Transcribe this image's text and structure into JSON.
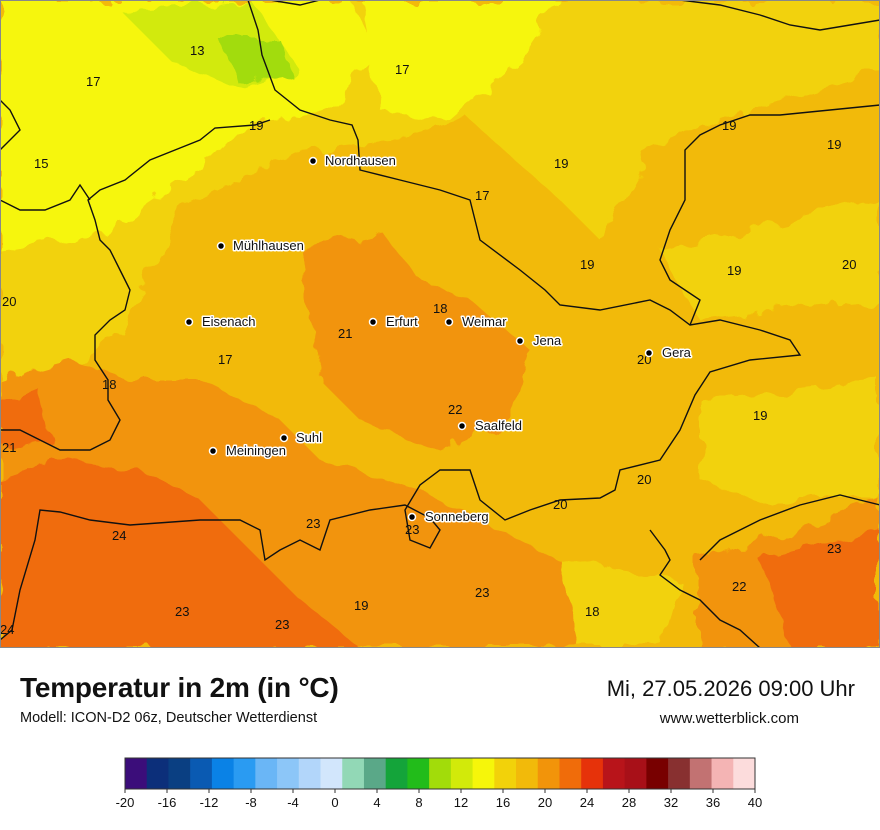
{
  "header": {
    "title": "Temperatur in 2m (in °C)",
    "model": "Modell: ICON-D2 06z, Deutscher Wetterdienst",
    "datetime": "Mi, 27.05.2026 09:00 Uhr",
    "website": "www.wetterblick.com"
  },
  "cities": [
    {
      "name": "Nordhausen"
    },
    {
      "name": "Mühlhausen"
    },
    {
      "name": "Eisenach"
    },
    {
      "name": "Erfurt"
    },
    {
      "name": "Weimar"
    },
    {
      "name": "Jena"
    },
    {
      "name": "Gera"
    },
    {
      "name": "Suhl"
    },
    {
      "name": "Meiningen"
    },
    {
      "name": "Saalfeld"
    },
    {
      "name": "Sonneberg"
    }
  ],
  "temperature_labels": [
    {
      "value": "13"
    },
    {
      "value": "17"
    },
    {
      "value": "17"
    },
    {
      "value": "15"
    },
    {
      "value": "19"
    },
    {
      "value": "19"
    },
    {
      "value": "17"
    },
    {
      "value": "19"
    },
    {
      "value": "19"
    },
    {
      "value": "19"
    },
    {
      "value": "19"
    },
    {
      "value": "20"
    },
    {
      "value": "20"
    },
    {
      "value": "21"
    },
    {
      "value": "18"
    },
    {
      "value": "17"
    },
    {
      "value": "18"
    },
    {
      "value": "20"
    },
    {
      "value": "22"
    },
    {
      "value": "19"
    },
    {
      "value": "21"
    },
    {
      "value": "20"
    },
    {
      "value": "20"
    },
    {
      "value": "24"
    },
    {
      "value": "23"
    },
    {
      "value": "23"
    },
    {
      "value": "23"
    },
    {
      "value": "22"
    },
    {
      "value": "23"
    },
    {
      "value": "19"
    },
    {
      "value": "23"
    },
    {
      "value": "23"
    },
    {
      "value": "18"
    },
    {
      "value": "24"
    }
  ],
  "legend": {
    "ticks": [
      "-20",
      "-16",
      "-12",
      "-8",
      "-4",
      "0",
      "4",
      "8",
      "12",
      "16",
      "20",
      "24",
      "28",
      "32",
      "36",
      "40"
    ],
    "colors": [
      "#3b0d7a",
      "#0c2f7a",
      "#0a3f82",
      "#0a5ab2",
      "#0a82e6",
      "#2a9bf2",
      "#6ab6f6",
      "#8cc6f8",
      "#b2d6fa",
      "#d2e6fc",
      "#92d8b6",
      "#5aa888",
      "#14a43a",
      "#22bc1a",
      "#a2dc0a",
      "#d2ea0a",
      "#f6f60a",
      "#f2d20a",
      "#f2ba0a",
      "#f2940a",
      "#f06c0a",
      "#e6320a",
      "#b8141a",
      "#a81018",
      "#780000",
      "#883030",
      "#c27272",
      "#f4b4b4",
      "#fcdcdc"
    ]
  }
}
